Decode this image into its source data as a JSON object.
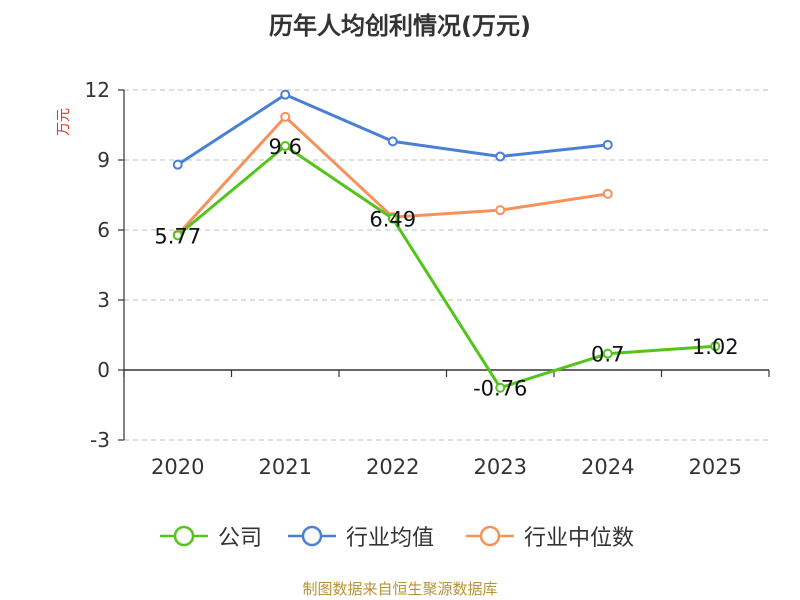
{
  "chart_data": {
    "type": "line",
    "title": "历年人均创利情况(万元)",
    "ylabel": "万元",
    "xlabel": "",
    "categories": [
      "2020",
      "2021",
      "2022",
      "2023",
      "2024",
      "2025"
    ],
    "ylim": [
      -3,
      12
    ],
    "yticks": [
      -3,
      0,
      3,
      6,
      9,
      12
    ],
    "grid": true,
    "legend_position": "bottom",
    "series": [
      {
        "name": "公司",
        "color": "#52c41a",
        "values": [
          5.77,
          9.6,
          6.49,
          -0.76,
          0.7,
          1.02
        ],
        "data_labels": [
          "5.77",
          "9.6",
          "6.49",
          "-0.76",
          "0.7",
          "1.02"
        ]
      },
      {
        "name": "行业均值",
        "color": "#4a7fd6",
        "values": [
          8.8,
          11.8,
          9.8,
          9.15,
          9.65,
          null
        ]
      },
      {
        "name": "行业中位数",
        "color": "#f7915a",
        "values": [
          5.8,
          10.85,
          6.55,
          6.85,
          7.55,
          null
        ]
      }
    ]
  },
  "source_note": "制图数据来自恒生聚源数据库"
}
